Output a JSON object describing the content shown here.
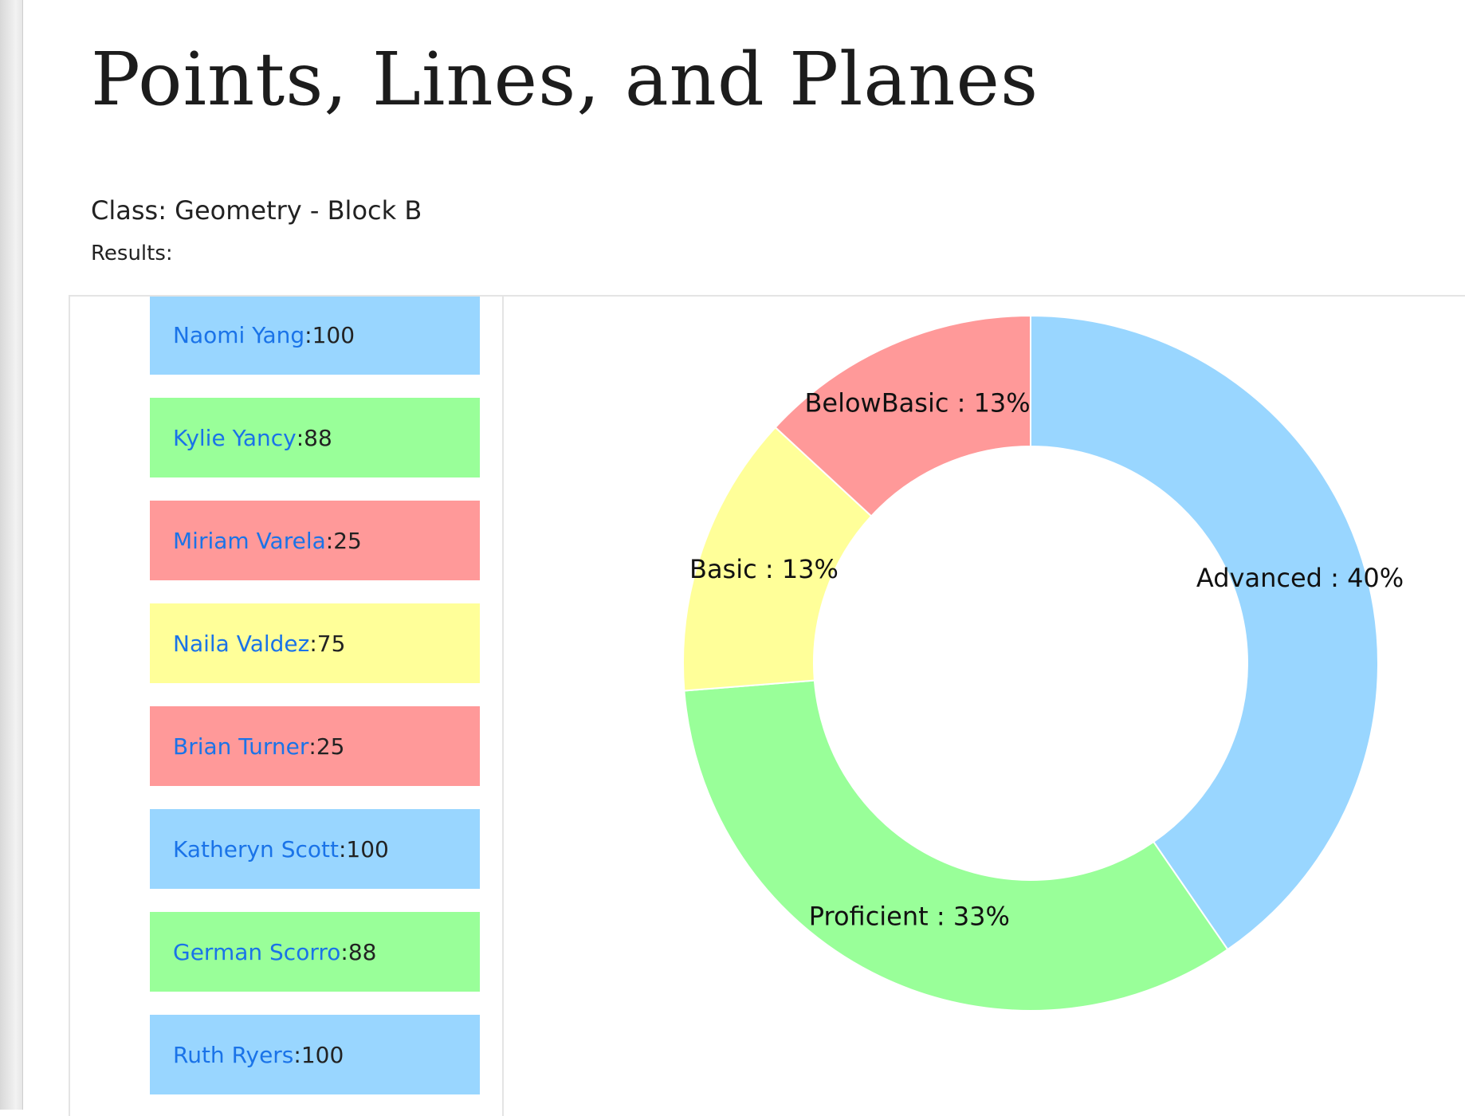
{
  "page": {
    "title": "Points, Lines, and Planes",
    "class_line": "Class: Geometry - Block B",
    "results_label": "Results:"
  },
  "colors": {
    "advanced": "#99d6ff",
    "proficient": "#99ff99",
    "basic": "#ffff99",
    "below_basic": "#ff9999",
    "link": "#1a73e8"
  },
  "students": [
    {
      "name": "Naomi Yang",
      "score": "100",
      "level": "advanced"
    },
    {
      "name": "Kylie Yancy",
      "score": "88",
      "level": "proficient"
    },
    {
      "name": "Miriam Varela",
      "score": "25",
      "level": "below_basic"
    },
    {
      "name": "Naila Valdez",
      "score": "75",
      "level": "basic"
    },
    {
      "name": "Brian Turner",
      "score": "25",
      "level": "below_basic"
    },
    {
      "name": "Katheryn Scott",
      "score": "100",
      "level": "advanced"
    },
    {
      "name": "German Scorro",
      "score": "88",
      "level": "proficient"
    },
    {
      "name": "Ruth Ryers",
      "score": "100",
      "level": "advanced"
    }
  ],
  "chart_data": {
    "type": "pie",
    "variant": "donut",
    "slices": [
      {
        "label": "Advanced : 40%",
        "category": "Advanced",
        "value": 40,
        "color": "#99d6ff"
      },
      {
        "label": "Proficient : 33%",
        "category": "Proficient",
        "value": 33,
        "color": "#99ff99"
      },
      {
        "label": "Basic : 13%",
        "category": "Basic",
        "value": 13,
        "color": "#ffff99"
      },
      {
        "label": "BelowBasic : 13%",
        "category": "BelowBasic",
        "value": 13,
        "color": "#ff9999"
      }
    ]
  }
}
